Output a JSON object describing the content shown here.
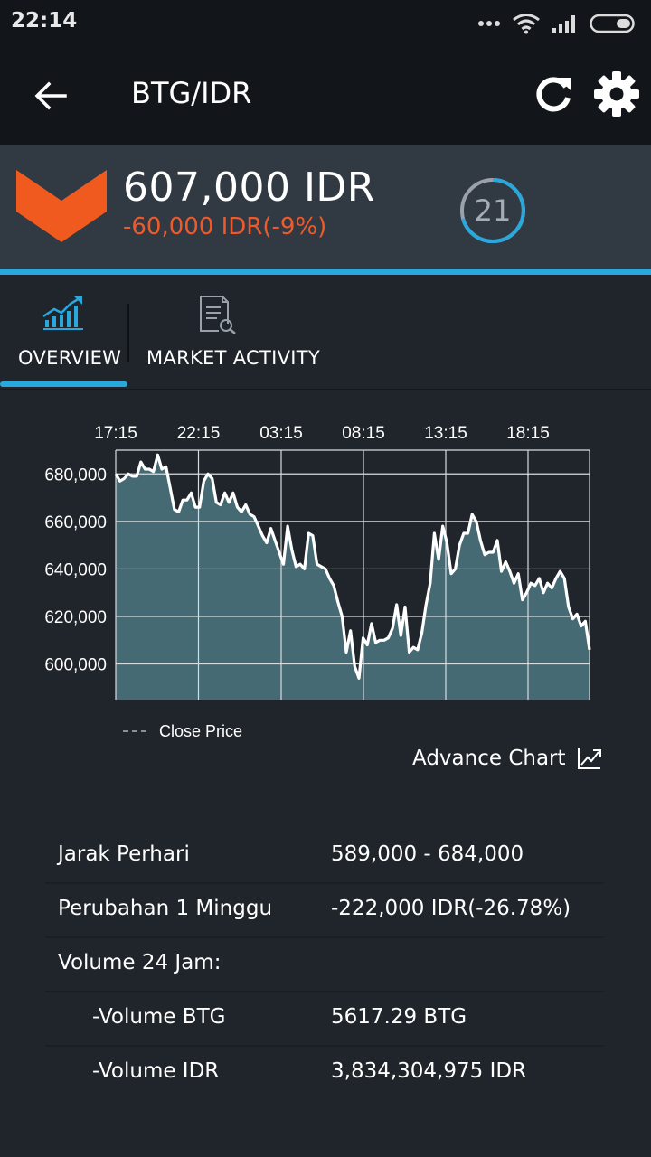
{
  "status_bar": {
    "time": "22:14"
  },
  "app_bar": {
    "title": "BTG/IDR"
  },
  "price": {
    "current": "607,000 IDR",
    "change": "-60,000 IDR(-9%)",
    "countdown": "21",
    "change_color": "#f05a2a",
    "accent_color": "#29a8de"
  },
  "tabs": [
    {
      "label": "OVERVIEW",
      "icon": "trend-chart-icon",
      "selected": true
    },
    {
      "label": "MARKET ACTIVITY",
      "icon": "report-icon",
      "selected": false
    }
  ],
  "chart_data": {
    "type": "area",
    "x_tick_labels": [
      "17:15",
      "22:15",
      "03:15",
      "08:15",
      "13:15",
      "18:15"
    ],
    "y_tick_labels": [
      "680,000",
      "660,000",
      "640,000",
      "620,000",
      "600,000"
    ],
    "ylim": [
      585000,
      690000
    ],
    "grid": true,
    "legend": "bottom-left",
    "series": [
      {
        "name": "Close Price",
        "values": [
          680000,
          677000,
          678000,
          680000,
          679000,
          679000,
          685000,
          682000,
          682000,
          681000,
          688000,
          682000,
          683000,
          674000,
          665000,
          664000,
          669000,
          669000,
          672000,
          666000,
          666000,
          677000,
          680000,
          678000,
          668000,
          667000,
          672000,
          668000,
          672000,
          666000,
          664000,
          667000,
          663000,
          662000,
          658000,
          654000,
          651000,
          657000,
          652000,
          647000,
          642000,
          658000,
          648000,
          641000,
          642000,
          640000,
          655000,
          654000,
          642000,
          641000,
          640000,
          636000,
          633000,
          626000,
          620000,
          605000,
          614000,
          599000,
          594000,
          611000,
          608000,
          617000,
          609000,
          610000,
          610000,
          611000,
          615000,
          625000,
          612000,
          624000,
          605000,
          607000,
          606000,
          613000,
          625000,
          634000,
          655000,
          644000,
          658000,
          651000,
          638000,
          640000,
          650000,
          655000,
          655000,
          663000,
          660000,
          652000,
          646000,
          647000,
          647000,
          652000,
          639000,
          643000,
          639000,
          634000,
          638000,
          627000,
          630000,
          634000,
          633000,
          636000,
          630000,
          634000,
          632000,
          636000,
          639000,
          636000,
          624000,
          619000,
          621000,
          616000,
          618000,
          606000
        ],
        "color": "#ffffff",
        "fill": "#466a73"
      }
    ]
  },
  "legend_label": "Close Price",
  "advance_chart": {
    "label": "Advance Chart"
  },
  "stats": {
    "daily_range": {
      "label": "Jarak Perhari",
      "value": "589,000 - 684,000"
    },
    "week_change": {
      "label": "Perubahan 1 Minggu",
      "value": "-222,000 IDR(-26.78%)"
    },
    "volume_header": {
      "label": "Volume 24 Jam:"
    },
    "volume_btg": {
      "label": "-Volume BTG",
      "value": "5617.29 BTG"
    },
    "volume_idr": {
      "label": "-Volume IDR",
      "value": "3,834,304,975 IDR"
    }
  }
}
